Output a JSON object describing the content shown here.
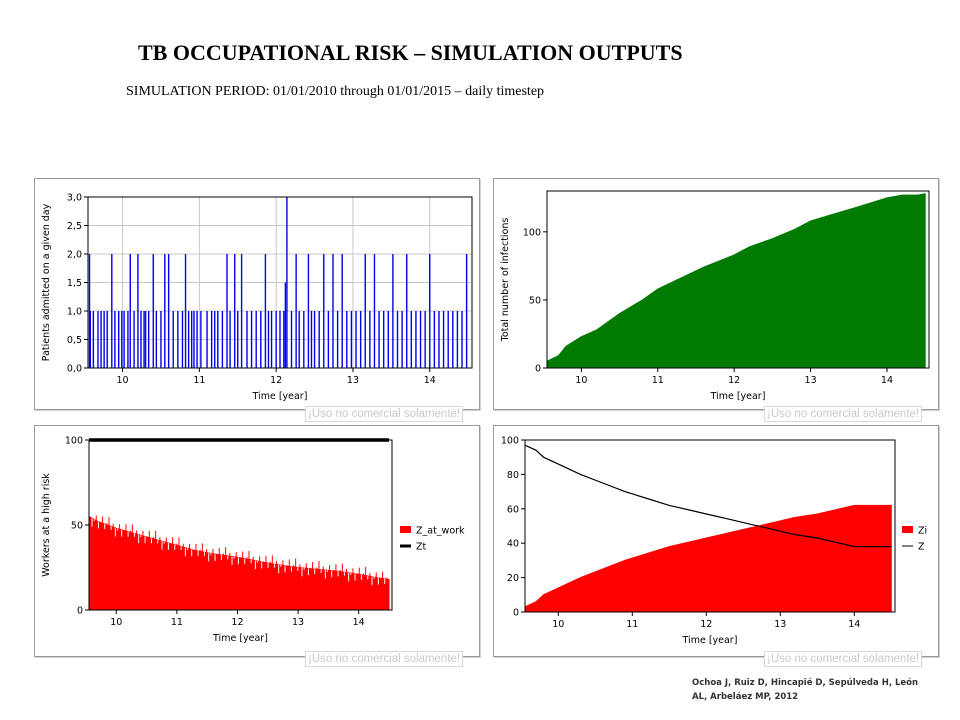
{
  "header": {
    "title": "TB OCCUPATIONAL RISK – SIMULATION OUTPUTS",
    "subtitle": "SIMULATION PERIOD: 01/01/2010 through 01/01/2015 – daily timestep"
  },
  "watermark": "¡Uso no comercial solamente!",
  "credit": "Ochoa J, Ruiz D, Hincapié D, Sepúlveda H, León AL, Arbeláez MP, 2012",
  "colors": {
    "blue": "#0000ee",
    "green": "#007a00",
    "red": "#ff0000",
    "black": "#000000"
  },
  "chart_data": [
    {
      "type": "bar",
      "xlabel": "Time [year]",
      "ylabel": "Patients admitted on a given day",
      "xlim": [
        9.55,
        14.55
      ],
      "ylim": [
        0,
        3
      ],
      "xticks": [
        "10",
        "11",
        "12",
        "13",
        "14"
      ],
      "yticks": [
        "0,0",
        "0,5",
        "1,0",
        "1,5",
        "2,0",
        "2,5",
        "3,0"
      ],
      "grid": true,
      "series": [
        {
          "color": "#0000ee",
          "x": [
            9.57,
            9.58,
            9.62,
            9.68,
            9.72,
            9.76,
            9.8,
            9.86,
            9.9,
            9.95,
            9.99,
            10.02,
            10.07,
            10.1,
            10.15,
            10.2,
            10.24,
            10.28,
            10.3,
            10.34,
            10.4,
            10.44,
            10.5,
            10.55,
            10.6,
            10.66,
            10.72,
            10.78,
            10.82,
            10.86,
            10.9,
            10.93,
            10.97,
            11.02,
            11.1,
            11.16,
            11.2,
            11.24,
            11.3,
            11.36,
            11.4,
            11.46,
            11.5,
            11.55,
            11.62,
            11.68,
            11.74,
            11.8,
            11.86,
            11.9,
            11.94,
            12.0,
            12.05,
            12.1,
            12.12,
            12.14,
            12.2,
            12.26,
            12.3,
            12.36,
            12.42,
            12.46,
            12.5,
            12.56,
            12.62,
            12.68,
            12.74,
            12.8,
            12.86,
            12.92,
            12.98,
            13.04,
            13.1,
            13.16,
            13.22,
            13.28,
            13.34,
            13.4,
            13.46,
            13.52,
            13.58,
            13.64,
            13.7,
            13.76,
            13.82,
            13.88,
            13.94,
            14.0,
            14.06,
            14.12,
            14.18,
            14.24,
            14.3,
            14.36,
            14.42,
            14.48
          ],
          "values": [
            2,
            1,
            1,
            1,
            1,
            1,
            1,
            2,
            1,
            1,
            1,
            1,
            1,
            2,
            1,
            2,
            1,
            1,
            1,
            1,
            2,
            1,
            1,
            2,
            2,
            1,
            1,
            1,
            2,
            1,
            1,
            1,
            1,
            1,
            1,
            1,
            1,
            1,
            1,
            2,
            1,
            2,
            1,
            2,
            1,
            1,
            1,
            1,
            2,
            1,
            1,
            1,
            1,
            1,
            1.5,
            3,
            1,
            2,
            1,
            1,
            2,
            1,
            1,
            1,
            2,
            1,
            2,
            1,
            2,
            1,
            1,
            1,
            1,
            2,
            1,
            2,
            1,
            1,
            1,
            2,
            1,
            1,
            2,
            1,
            1,
            1,
            1,
            2,
            1,
            1,
            1,
            1,
            1,
            1,
            1,
            2
          ]
        }
      ]
    },
    {
      "type": "area",
      "xlabel": "Time [year]",
      "ylabel": "Total number of infections",
      "xlim": [
        9.55,
        14.55
      ],
      "ylim": [
        0,
        130
      ],
      "xticks": [
        "10",
        "11",
        "12",
        "13",
        "14"
      ],
      "yticks": [
        "0",
        "50",
        "100"
      ],
      "grid": false,
      "series": [
        {
          "color": "#007a00",
          "x": [
            9.55,
            9.7,
            9.8,
            10.0,
            10.2,
            10.5,
            10.8,
            11.0,
            11.3,
            11.6,
            12.0,
            12.2,
            12.5,
            12.8,
            13.0,
            13.3,
            13.6,
            14.0,
            14.2,
            14.4,
            14.5
          ],
          "values": [
            5,
            9,
            16,
            23,
            28,
            40,
            50,
            58,
            66,
            74,
            83,
            89,
            95,
            102,
            108,
            113,
            118,
            125,
            127,
            127,
            128
          ]
        }
      ]
    },
    {
      "type": "area",
      "xlabel": "Time [year]",
      "ylabel": "Workers at a high risk",
      "xlim": [
        9.55,
        14.55
      ],
      "ylim": [
        0,
        100
      ],
      "xticks": [
        "10",
        "11",
        "12",
        "13",
        "14"
      ],
      "yticks": [
        "0",
        "50",
        "100"
      ],
      "grid": false,
      "legend": "right",
      "series": [
        {
          "name": "Z_at_work",
          "color": "#ff0000",
          "x": [
            9.55,
            9.7,
            10.0,
            10.3,
            10.6,
            11.0,
            11.3,
            11.6,
            12.0,
            12.3,
            12.6,
            13.0,
            13.3,
            13.6,
            14.0,
            14.3,
            14.5
          ],
          "values": [
            55,
            52,
            48,
            45,
            42,
            38,
            35,
            33,
            31,
            29,
            27,
            25,
            24,
            23,
            21,
            19,
            18
          ]
        },
        {
          "name": "Zt",
          "color": "#000000",
          "x": [
            9.55,
            14.5
          ],
          "values": [
            100,
            100
          ]
        }
      ]
    },
    {
      "type": "area",
      "xlabel": "Time [year]",
      "ylabel": "",
      "xlim": [
        9.55,
        14.55
      ],
      "ylim": [
        0,
        100
      ],
      "xticks": [
        "10",
        "11",
        "12",
        "13",
        "14"
      ],
      "yticks": [
        "0",
        "20",
        "40",
        "60",
        "80",
        "100"
      ],
      "grid": false,
      "legend": "right",
      "series": [
        {
          "name": "Zi",
          "color": "#ff0000",
          "x": [
            9.55,
            9.7,
            9.8,
            10.0,
            10.3,
            10.6,
            10.9,
            11.2,
            11.5,
            11.8,
            12.0,
            12.3,
            12.6,
            12.9,
            13.2,
            13.5,
            13.8,
            14.0,
            14.2,
            14.5
          ],
          "values": [
            3,
            6,
            10,
            14,
            20,
            25,
            30,
            34,
            38,
            41,
            43,
            46,
            49,
            52,
            55,
            57,
            60,
            62,
            62,
            62
          ]
        },
        {
          "name": "Z",
          "color": "#000000",
          "x": [
            9.55,
            9.7,
            9.8,
            10.0,
            10.3,
            10.6,
            10.9,
            11.2,
            11.5,
            11.8,
            12.0,
            12.3,
            12.6,
            12.9,
            13.2,
            13.5,
            13.8,
            14.0,
            14.2,
            14.5
          ],
          "values": [
            97,
            94,
            90,
            86,
            80,
            75,
            70,
            66,
            62,
            59,
            57,
            54,
            51,
            48,
            45,
            43,
            40,
            38,
            38,
            38
          ]
        }
      ]
    }
  ]
}
